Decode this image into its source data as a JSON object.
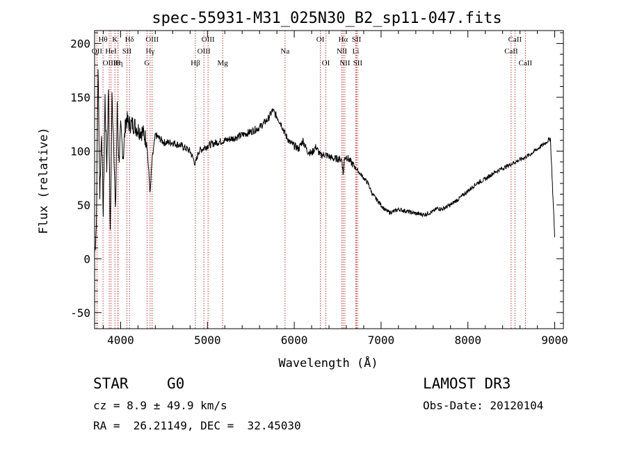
{
  "chart_data": {
    "type": "line",
    "title": "spec-55931-M31_025N30_B2_sp11-047.fits",
    "xlabel": "Wavelength (Å)",
    "ylabel": "Flux (relative)",
    "xlim": [
      3700,
      9100
    ],
    "ylim": [
      -65,
      212
    ],
    "xticks": [
      4000,
      5000,
      6000,
      7000,
      8000,
      9000
    ],
    "yticks": [
      -50,
      0,
      50,
      100,
      150,
      200
    ],
    "series": [
      {
        "name": "flux",
        "x": [
          3700,
          3720,
          3740,
          3760,
          3780,
          3800,
          3820,
          3840,
          3860,
          3880,
          3900,
          3920,
          3940,
          3960,
          3980,
          4000,
          4030,
          4060,
          4100,
          4150,
          4200,
          4250,
          4300,
          4340,
          4360,
          4400,
          4500,
          4600,
          4700,
          4800,
          4861,
          4900,
          5000,
          5100,
          5200,
          5300,
          5400,
          5500,
          5600,
          5700,
          5750,
          5800,
          5850,
          5900,
          5950,
          6000,
          6050,
          6100,
          6150,
          6200,
          6250,
          6300,
          6350,
          6400,
          6450,
          6500,
          6550,
          6563,
          6580,
          6600,
          6650,
          6700,
          6750,
          6800,
          6850,
          6900,
          6950,
          7000,
          7050,
          7100,
          7150,
          7200,
          7300,
          7400,
          7500,
          7600,
          7650,
          7700,
          7800,
          7900,
          8000,
          8100,
          8200,
          8300,
          8400,
          8500,
          8600,
          8700,
          8800,
          8900,
          8950,
          9000
        ],
        "y": [
          5,
          30,
          180,
          60,
          120,
          40,
          150,
          85,
          160,
          20,
          150,
          110,
          40,
          140,
          90,
          120,
          95,
          130,
          125,
          125,
          120,
          118,
          110,
          60,
          90,
          115,
          108,
          108,
          105,
          100,
          88,
          100,
          105,
          108,
          110,
          112,
          115,
          118,
          122,
          130,
          138,
          132,
          125,
          115,
          108,
          105,
          102,
          110,
          100,
          98,
          104,
          96,
          97,
          95,
          93,
          93,
          92,
          78,
          94,
          95,
          90,
          85,
          80,
          75,
          70,
          60,
          55,
          50,
          45,
          43,
          44,
          46,
          44,
          42,
          41,
          44,
          47,
          46,
          50,
          56,
          63,
          70,
          74,
          80,
          84,
          88,
          92,
          96,
          102,
          108,
          112,
          20
        ]
      }
    ],
    "lines": [
      {
        "label": "OII",
        "wave": 3727,
        "row": 2,
        "side": "top"
      },
      {
        "label": "Hθ",
        "wave": 3797,
        "row": 1,
        "side": "top"
      },
      {
        "label": "OIII",
        "wave": 3869,
        "row": 3,
        "side": "top"
      },
      {
        "label": "HeI",
        "wave": 3889,
        "row": 2,
        "side": "top"
      },
      {
        "label": "K",
        "wave": 3934,
        "row": 1,
        "side": "top"
      },
      {
        "label": "Hη",
        "wave": 3970,
        "row": 3,
        "side": "top"
      },
      {
        "label": "H",
        "wave": 3969,
        "row": 3,
        "side": "top"
      },
      {
        "label": "SII",
        "wave": 4072,
        "row": 2,
        "side": "top"
      },
      {
        "label": "Hδ",
        "wave": 4102,
        "row": 1,
        "side": "top"
      },
      {
        "label": "OIII",
        "wave": 4363,
        "row": 1,
        "side": "top"
      },
      {
        "label": "Hγ",
        "wave": 4340,
        "row": 2,
        "side": "top"
      },
      {
        "label": "G",
        "wave": 4304,
        "row": 3,
        "side": "top"
      },
      {
        "label": "Hβ",
        "wave": 4861,
        "row": 3,
        "side": "top"
      },
      {
        "label": "OIII",
        "wave": 4959,
        "row": 2,
        "side": "top"
      },
      {
        "label": "OIII",
        "wave": 5007,
        "row": 1,
        "side": "top"
      },
      {
        "label": "Mg",
        "wave": 5175,
        "row": 3,
        "side": "top"
      },
      {
        "label": "Na",
        "wave": 5894,
        "row": 2,
        "side": "top"
      },
      {
        "label": "OI",
        "wave": 6300,
        "row": 1,
        "side": "top"
      },
      {
        "label": "OI",
        "wave": 6364,
        "row": 3,
        "side": "top"
      },
      {
        "label": "NII",
        "wave": 6548,
        "row": 2,
        "side": "top"
      },
      {
        "label": "Hα",
        "wave": 6563,
        "row": 1,
        "side": "top"
      },
      {
        "label": "NII",
        "wave": 6583,
        "row": 3,
        "side": "top"
      },
      {
        "label": "SII",
        "wave": 6716,
        "row": 1,
        "side": "top"
      },
      {
        "label": "Li",
        "wave": 6708,
        "row": 2,
        "side": "top"
      },
      {
        "label": "SII",
        "wave": 6731,
        "row": 3,
        "side": "top"
      },
      {
        "label": "CaII",
        "wave": 8498,
        "row": 2,
        "side": "top"
      },
      {
        "label": "CaII",
        "wave": 8542,
        "row": 1,
        "side": "top"
      },
      {
        "label": "CaII",
        "wave": 8662,
        "row": 3,
        "side": "top"
      }
    ]
  },
  "info": {
    "class": "STAR",
    "subclass": "G0",
    "survey": "LAMOST DR3",
    "cz": "cz = 8.9 ± 49.9 km/s",
    "obsdate": "Obs-Date: 20120104",
    "radec": "RA =  26.21149, DEC =  32.45030"
  },
  "colors": {
    "line_marker": "#b22222",
    "spectrum": "#000000",
    "axes": "#000000"
  }
}
